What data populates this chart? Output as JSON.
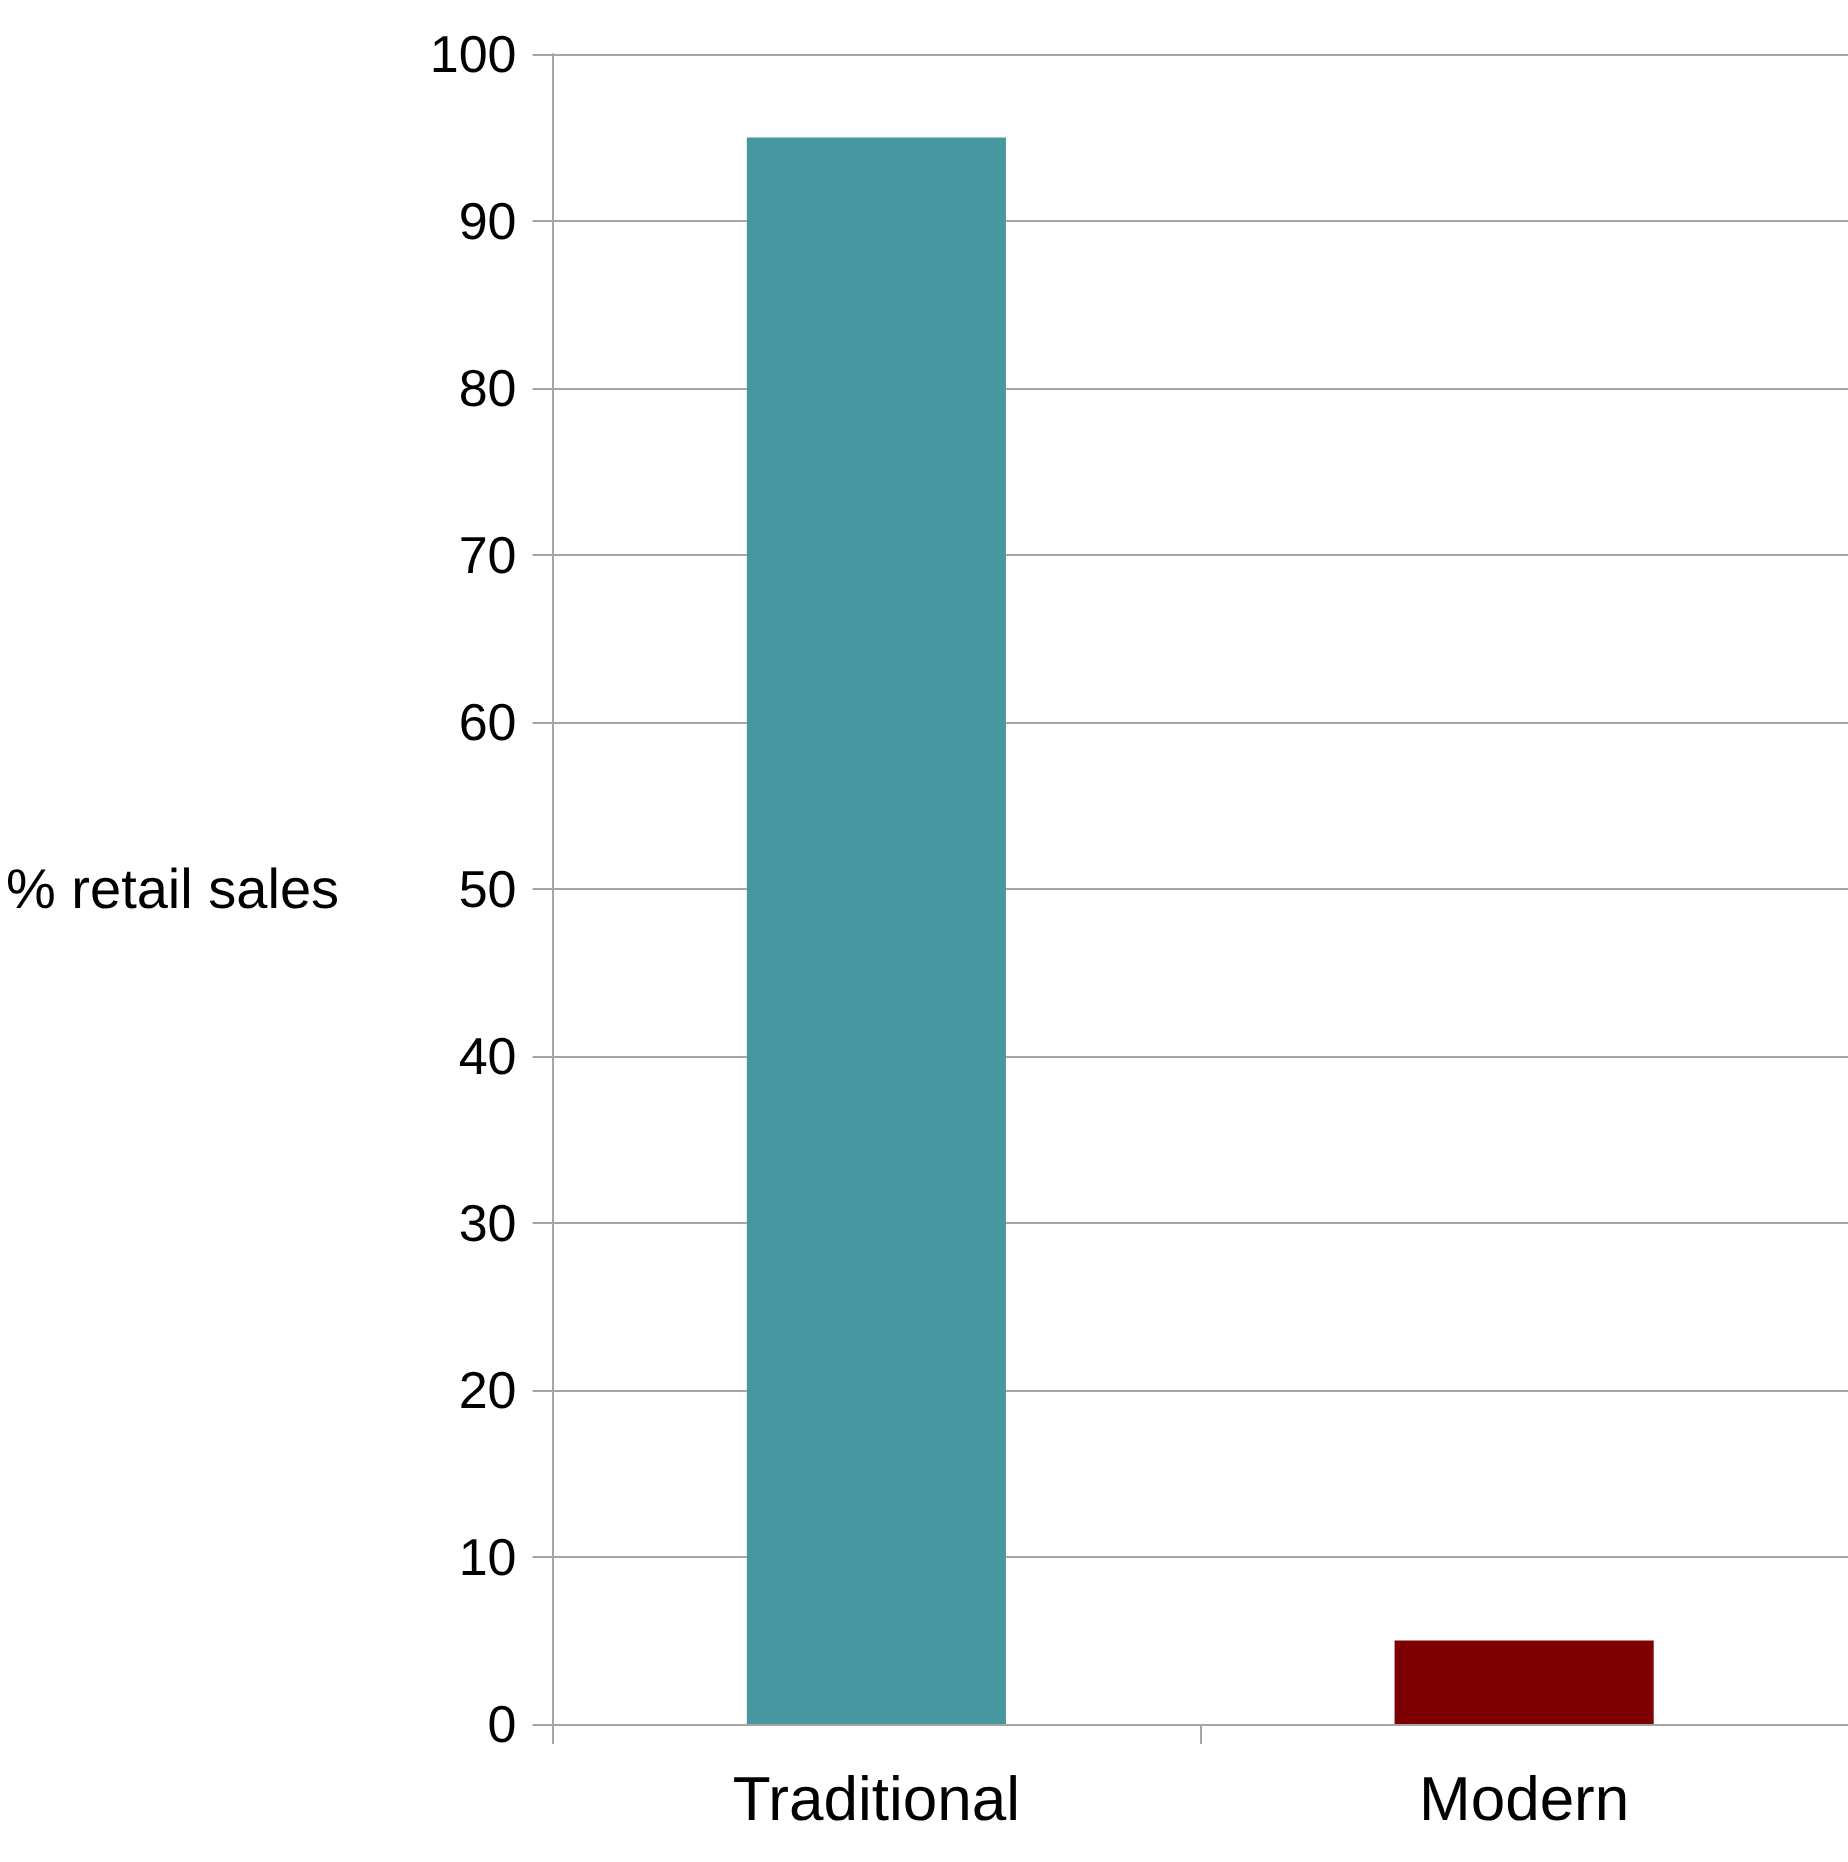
{
  "chart_data": {
    "type": "bar",
    "ylabel": "% retail sales",
    "categories": [
      "Traditional",
      "Modern"
    ],
    "values": [
      95,
      5
    ],
    "colors": [
      "#4797a0",
      "#7f0000"
    ],
    "ylim": [
      0,
      100
    ],
    "yticks": [
      0,
      10,
      20,
      30,
      40,
      50,
      60,
      70,
      80,
      90,
      100
    ],
    "grid": "y"
  }
}
